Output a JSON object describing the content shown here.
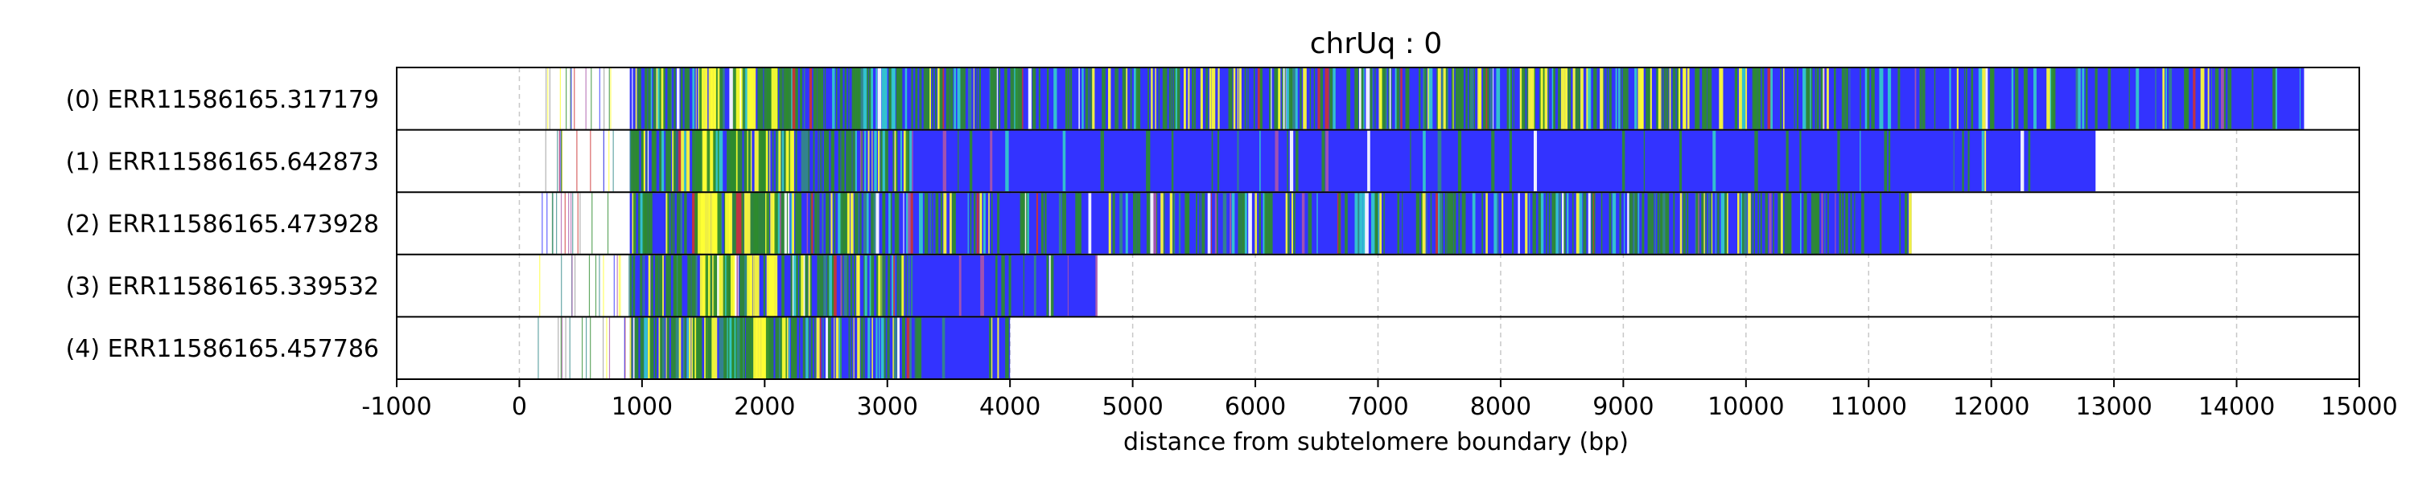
{
  "chart_data": {
    "type": "heatmap",
    "title": "chrUq : 0",
    "xlabel": "distance from subtelomere boundary (bp)",
    "xlim": [
      -1000,
      15000
    ],
    "x_ticks": [
      -1000,
      0,
      1000,
      2000,
      3000,
      4000,
      5000,
      6000,
      7000,
      8000,
      9000,
      10000,
      11000,
      12000,
      13000,
      14000,
      15000
    ],
    "x_tick_labels": [
      "-1000",
      "0",
      "1000",
      "2000",
      "3000",
      "4000",
      "5000",
      "6000",
      "7000",
      "8000",
      "9000",
      "10000",
      "11000",
      "12000",
      "13000",
      "14000",
      "15000"
    ],
    "grid": "vertical dashed at each x tick",
    "colors": {
      "blue": "#3333ff",
      "green": "#2e8b2e",
      "yellow": "#ffff33",
      "cyan": "#33cccc",
      "red": "#cc3333",
      "purple": "#aa55aa",
      "teal": "#338888",
      "gray": "#999999"
    },
    "reads": [
      {
        "label": "(0) ERR11586165.317179",
        "start": 900,
        "end": 14550,
        "pattern": "mixed-heavy",
        "seed": 11
      },
      {
        "label": "(1) ERR11586165.642873",
        "start": 900,
        "end": 12850,
        "pattern": "mostly-blue",
        "seed": 23
      },
      {
        "label": "(2) ERR11586165.473928",
        "start": 900,
        "end": 11350,
        "pattern": "mixed-mid",
        "seed": 37
      },
      {
        "label": "(3) ERR11586165.339532",
        "start": 900,
        "end": 4700,
        "pattern": "mostly-blue-short",
        "seed": 41
      },
      {
        "label": "(4) ERR11586165.457786",
        "start": 900,
        "end": 4000,
        "pattern": "mostly-blue-short",
        "seed": 59
      }
    ]
  }
}
